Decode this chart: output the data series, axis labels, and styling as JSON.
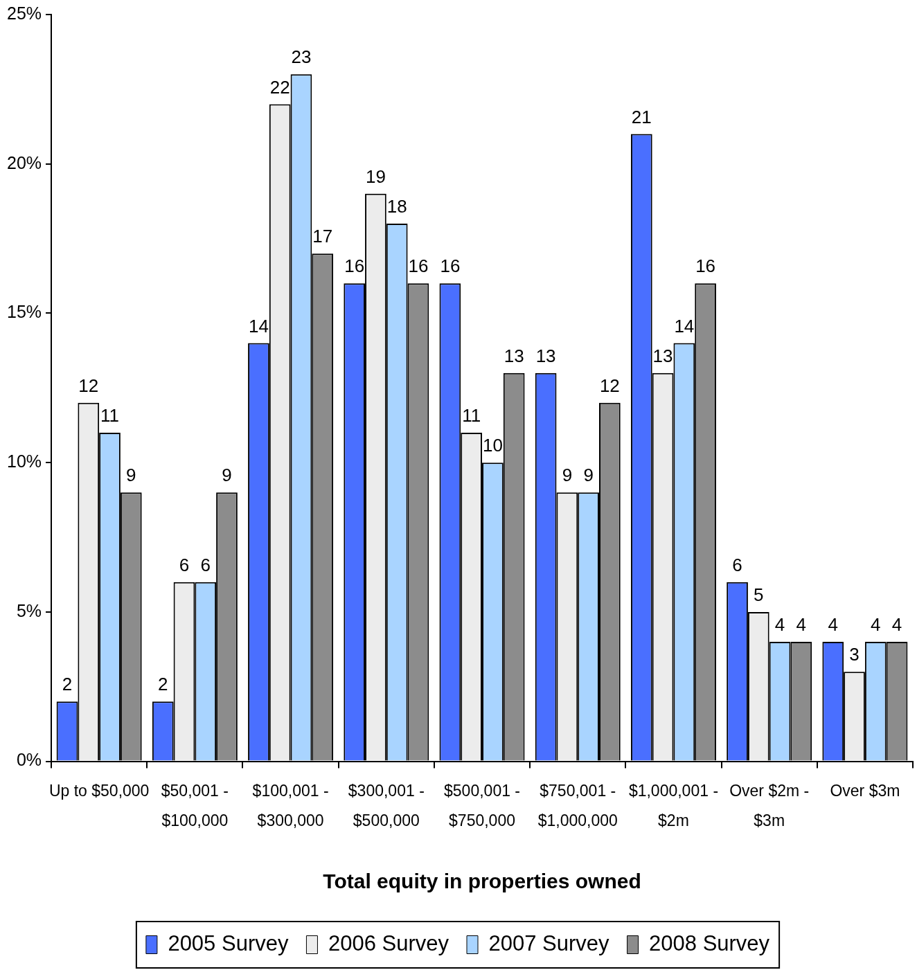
{
  "chart_data": {
    "type": "bar",
    "xlabel": "Total equity in properties owned",
    "categories": [
      "Up to $50,000",
      "$50,001 - $100,000",
      "$100,001 - $300,000",
      "$300,001 - $500,000",
      "$500,001 - $750,000",
      "$750,001 - $1,000,000",
      "$1,000,001 - $2m",
      "Over $2m - $3m",
      "Over $3m"
    ],
    "series": [
      {
        "name": "2005 Survey",
        "color": "#4a6fff",
        "values": [
          2,
          2,
          14,
          16,
          16,
          13,
          21,
          6,
          4
        ]
      },
      {
        "name": "2006 Survey",
        "color": "#ececec",
        "values": [
          12,
          6,
          22,
          19,
          11,
          9,
          13,
          5,
          3
        ]
      },
      {
        "name": "2007 Survey",
        "color": "#a9d4ff",
        "values": [
          11,
          6,
          23,
          18,
          10,
          9,
          14,
          4,
          4
        ]
      },
      {
        "name": "2008 Survey",
        "color": "#8c8c8c",
        "values": [
          9,
          9,
          17,
          16,
          13,
          12,
          16,
          4,
          4
        ]
      }
    ],
    "ylim": [
      0,
      25
    ],
    "yticks": [
      {
        "value": 0,
        "label": "0%"
      },
      {
        "value": 5,
        "label": "5%"
      },
      {
        "value": 10,
        "label": "10%"
      },
      {
        "value": 15,
        "label": "15%"
      },
      {
        "value": 20,
        "label": "20%"
      },
      {
        "value": 25,
        "label": "25%"
      }
    ],
    "grid": false,
    "legend": "bottom",
    "data_labels": true
  }
}
